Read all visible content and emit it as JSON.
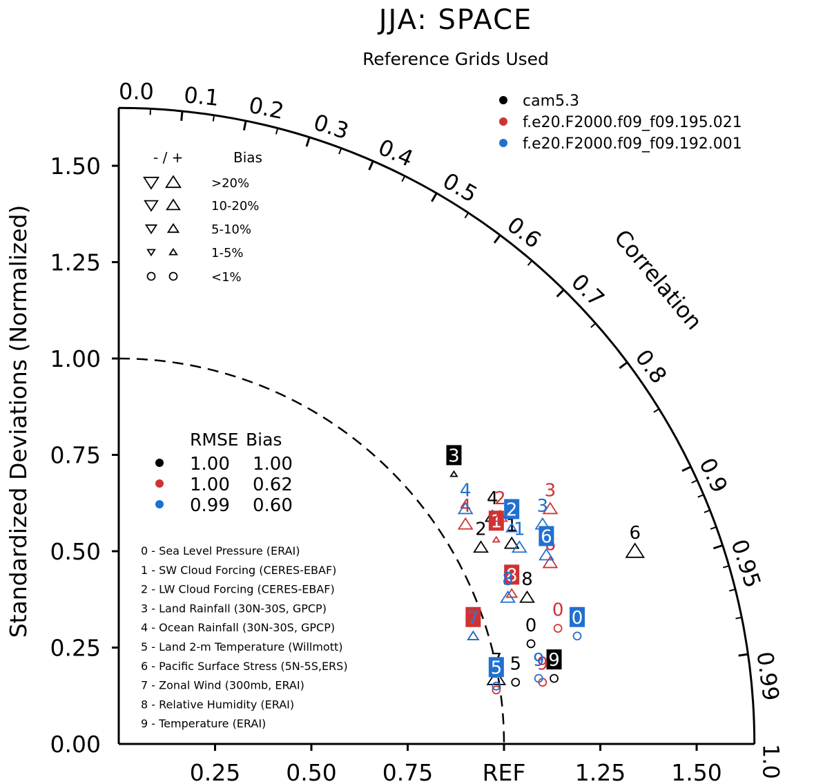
{
  "chart_data": {
    "type": "scatter",
    "subtype": "taylor-diagram",
    "title": "JJA: SPACE",
    "subtitle": "Reference Grids Used",
    "ylabel": "Standardized Deviations (Normalized)",
    "correlation_label": "Correlation",
    "ref_label": "REF",
    "ylim": [
      0,
      1.65
    ],
    "xlim": [
      0,
      1.65
    ],
    "x_ticks": [
      "0.25",
      "0.50",
      "0.75",
      "REF",
      "1.25",
      "1.50"
    ],
    "y_ticks": [
      "0.00",
      "0.25",
      "0.50",
      "0.75",
      "1.00",
      "1.25",
      "1.50"
    ],
    "corr_ticks": [
      {
        "value": 0.0,
        "label": "0.0"
      },
      {
        "value": 0.1,
        "label": "0.1"
      },
      {
        "value": 0.2,
        "label": "0.2"
      },
      {
        "value": 0.3,
        "label": "0.3"
      },
      {
        "value": 0.4,
        "label": "0.4"
      },
      {
        "value": 0.5,
        "label": "0.5"
      },
      {
        "value": 0.6,
        "label": "0.6"
      },
      {
        "value": 0.7,
        "label": "0.7"
      },
      {
        "value": 0.8,
        "label": "0.8"
      },
      {
        "value": 0.9,
        "label": "0.9"
      },
      {
        "value": 0.95,
        "label": "0.95"
      },
      {
        "value": 0.99,
        "label": "0.99"
      },
      {
        "value": 1.0,
        "label": "1.0"
      }
    ],
    "minor_corr_ticks": [
      0.05,
      0.15,
      0.25,
      0.35,
      0.45,
      0.55,
      0.65,
      0.75,
      0.85,
      0.91,
      0.92,
      0.93,
      0.94,
      0.96,
      0.97,
      0.98
    ],
    "grid": false,
    "legend": {
      "position": "top-right",
      "entries": [
        {
          "name": "cam5.3",
          "color": "#000000"
        },
        {
          "name": "f.e20.F2000.f09_f09.195.021",
          "color": "#d03232"
        },
        {
          "name": "f.e20.F2000.f09_f09.192.001",
          "color": "#2070d0"
        }
      ]
    },
    "bias_key": {
      "header_sign": "- / +",
      "header_label": "Bias",
      "rows": [
        "&gt;20%",
        "10-20%",
        "5-10%",
        "1-5%",
        "&lt;1%"
      ]
    },
    "rmse_table": {
      "header_rmse": "RMSE",
      "header_bias": "Bias",
      "rows": [
        {
          "rmse": "1.00",
          "bias": "1.00",
          "color": "#000000"
        },
        {
          "rmse": "1.00",
          "bias": "0.62",
          "color": "#d03232"
        },
        {
          "rmse": "0.99",
          "bias": "0.60",
          "color": "#2070d0"
        }
      ]
    },
    "variables": [
      "0 - Sea Level Pressure (ERAI)",
      "1 - SW Cloud Forcing (CERES-EBAF)",
      "2 - LW Cloud Forcing (CERES-EBAF)",
      "3 - Land Rainfall (30N-30S, GPCP)",
      "4 - Ocean Rainfall (30N-30S, GPCP)",
      "5 - Land 2-m Temperature (Willmott)",
      "6 - Pacific Surface Stress (5N-5S,ERS)",
      "7 - Zonal Wind (300mb, ERAI)",
      "8 - Relative Humidity (ERAI)",
      "9 - Temperature (ERAI)"
    ],
    "series": [
      {
        "name": "cam5.3",
        "color": "#000000",
        "points": [
          {
            "id": "0",
            "x": 1.07,
            "y": 0.26,
            "marker": "circle",
            "size": 1,
            "boxed": false
          },
          {
            "id": "1",
            "x": 1.02,
            "y": 0.52,
            "marker": "up",
            "size": 2,
            "boxed": false
          },
          {
            "id": "2",
            "x": 0.94,
            "y": 0.51,
            "marker": "up",
            "size": 2,
            "boxed": false
          },
          {
            "id": "3",
            "x": 0.87,
            "y": 0.7,
            "marker": "up",
            "size": 0,
            "boxed": true
          },
          {
            "id": "4",
            "x": 0.97,
            "y": 0.59,
            "marker": "up",
            "size": 2,
            "boxed": false
          },
          {
            "id": "5",
            "x": 1.03,
            "y": 0.16,
            "marker": "circle",
            "size": 1,
            "boxed": false
          },
          {
            "id": "6",
            "x": 1.34,
            "y": 0.5,
            "marker": "up",
            "size": 3,
            "boxed": false
          },
          {
            "id": "7",
            "x": 0.98,
            "y": 0.17,
            "marker": "up",
            "size": 3,
            "boxed": false
          },
          {
            "id": "8",
            "x": 1.06,
            "y": 0.38,
            "marker": "up",
            "size": 2,
            "boxed": false
          },
          {
            "id": "9",
            "x": 1.13,
            "y": 0.17,
            "marker": "circle",
            "size": 1,
            "boxed": true
          }
        ]
      },
      {
        "name": "f.e20.F2000.f09_f09.195.021",
        "color": "#d03232",
        "points": [
          {
            "id": "0",
            "x": 1.14,
            "y": 0.3,
            "marker": "circle",
            "size": 1,
            "boxed": false
          },
          {
            "id": "1",
            "x": 0.98,
            "y": 0.53,
            "marker": "up",
            "size": 0,
            "boxed": true
          },
          {
            "id": "2",
            "x": 0.99,
            "y": 0.59,
            "marker": "up",
            "size": 2,
            "boxed": false
          },
          {
            "id": "3",
            "x": 1.12,
            "y": 0.61,
            "marker": "up",
            "size": 2,
            "boxed": false
          },
          {
            "id": "4",
            "x": 0.9,
            "y": 0.57,
            "marker": "up",
            "size": 2,
            "boxed": false
          },
          {
            "id": "5",
            "x": 0.98,
            "y": 0.14,
            "marker": "circle",
            "size": 1,
            "boxed": false
          },
          {
            "id": "6",
            "x": 1.12,
            "y": 0.47,
            "marker": "up",
            "size": 2,
            "boxed": false
          },
          {
            "id": "7",
            "x": 0.92,
            "y": 0.28,
            "marker": "up",
            "size": 1,
            "boxed": true
          },
          {
            "id": "8",
            "x": 1.02,
            "y": 0.39,
            "marker": "up",
            "size": 1,
            "boxed": true
          },
          {
            "id": "9",
            "x": 1.1,
            "y": 0.16,
            "marker": "circle",
            "size": 1,
            "boxed": false
          }
        ]
      },
      {
        "name": "f.e20.F2000.f09_f09.192.001",
        "color": "#2070d0",
        "points": [
          {
            "id": "0",
            "x": 1.19,
            "y": 0.28,
            "marker": "circle",
            "size": 1,
            "boxed": true
          },
          {
            "id": "1",
            "x": 1.04,
            "y": 0.51,
            "marker": "up",
            "size": 2,
            "boxed": false
          },
          {
            "id": "2",
            "x": 1.02,
            "y": 0.56,
            "marker": "up",
            "size": 1,
            "boxed": true
          },
          {
            "id": "3",
            "x": 1.1,
            "y": 0.57,
            "marker": "up",
            "size": 2,
            "boxed": false
          },
          {
            "id": "4",
            "x": 0.9,
            "y": 0.61,
            "marker": "up",
            "size": 2,
            "boxed": false
          },
          {
            "id": "5",
            "x": 0.98,
            "y": 0.15,
            "marker": "circle",
            "size": 1,
            "boxed": true
          },
          {
            "id": "6",
            "x": 1.11,
            "y": 0.49,
            "marker": "up",
            "size": 2,
            "boxed": true
          },
          {
            "id": "7",
            "x": 0.92,
            "y": 0.28,
            "marker": "up",
            "size": 1,
            "boxed": false
          },
          {
            "id": "8",
            "x": 1.01,
            "y": 0.38,
            "marker": "up",
            "size": 2,
            "boxed": false
          },
          {
            "id": "9",
            "x": 1.09,
            "y": 0.17,
            "marker": "circle",
            "size": 1,
            "boxed": false
          }
        ]
      }
    ]
  }
}
